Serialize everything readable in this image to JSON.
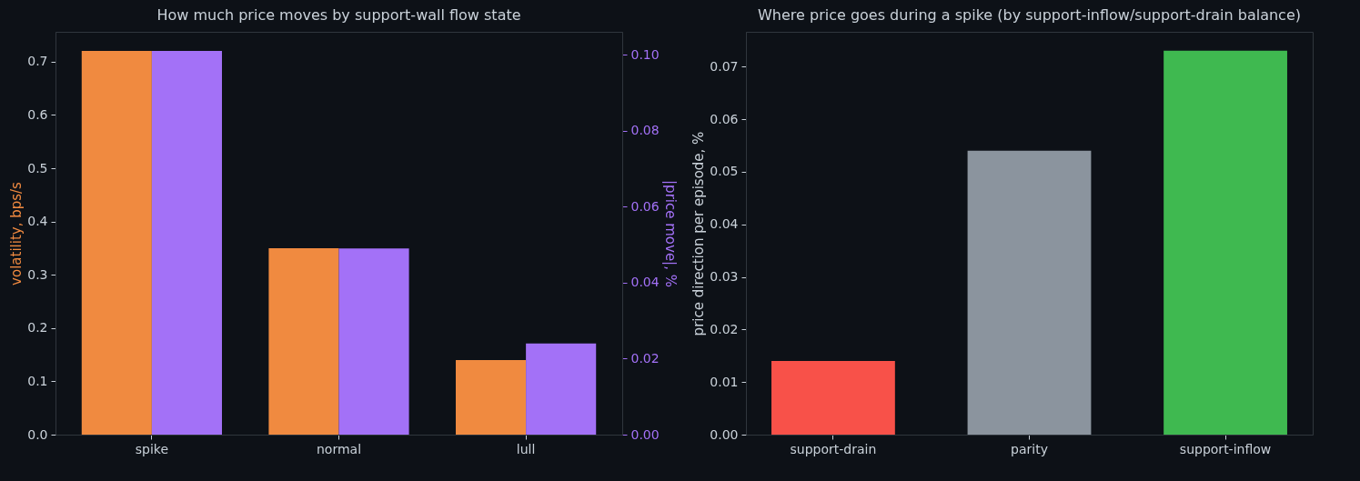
{
  "chart_data": [
    {
      "type": "bar",
      "title": "How much price moves by support-wall flow state",
      "categories": [
        "spike",
        "normal",
        "lull"
      ],
      "ylabel": "volatility, bps/s",
      "y2label": "|price move|, %",
      "series": [
        {
          "color": "#f08a40",
          "values": [
            0.72,
            0.35,
            0.14
          ]
        },
        {
          "color": "#a371f7",
          "values": [
            0.101,
            0.049,
            0.024
          ],
          "axis": "y2"
        }
      ],
      "ylim": [
        0,
        0.756
      ],
      "yticks": [
        {
          "value": 0,
          "label": "0.0"
        },
        0.1,
        0.2,
        0.3,
        0.4,
        0.5,
        0.6,
        0.7
      ],
      "y2lim": [
        0,
        0.106
      ],
      "y2ticks": [
        {
          "value": 0,
          "label": "0.00"
        },
        {
          "value": 0.02,
          "label": "0.02"
        },
        {
          "value": 0.04,
          "label": "0.04"
        },
        {
          "value": 0.06,
          "label": "0.06"
        },
        {
          "value": 0.08,
          "label": "0.08"
        },
        {
          "value": 0.1,
          "label": "0.10"
        }
      ]
    },
    {
      "type": "bar",
      "title": "Where price goes during a spike (by support-inflow/support-drain balance)",
      "categories": [
        "support-drain",
        "parity",
        "support-inflow"
      ],
      "ylabel": "price direction per episode, %",
      "values": [
        0.014,
        0.054,
        0.073
      ],
      "colors": [
        "#f85149",
        "#8b949e",
        "#3fb950"
      ],
      "ylim": [
        0,
        0.0766
      ],
      "yticks": [
        {
          "value": 0,
          "label": "0.00"
        },
        {
          "value": 0.01,
          "label": "0.01"
        },
        {
          "value": 0.02,
          "label": "0.02"
        },
        {
          "value": 0.03,
          "label": "0.03"
        },
        {
          "value": 0.04,
          "label": "0.04"
        },
        {
          "value": 0.05,
          "label": "0.05"
        },
        {
          "value": 0.06,
          "label": "0.06"
        },
        {
          "value": 0.07,
          "label": "0.07"
        }
      ]
    }
  ]
}
